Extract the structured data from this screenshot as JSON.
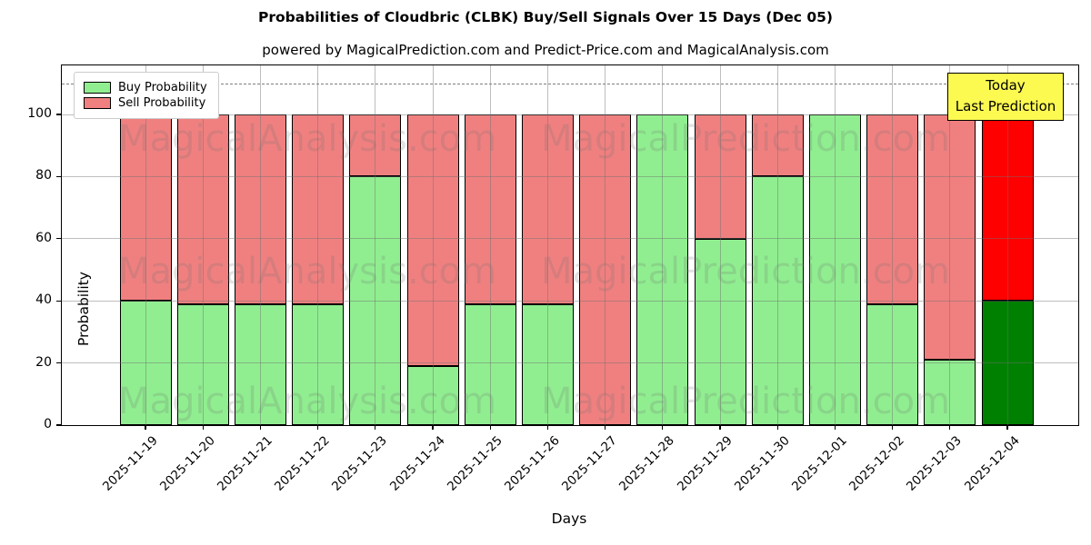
{
  "title": "Probabilities of Cloudbric (CLBK) Buy/Sell Signals Over 15 Days (Dec 05)",
  "subtitle": "powered by MagicalPrediction.com and Predict-Price.com and MagicalAnalysis.com",
  "legend": {
    "buy_label": "Buy Probability",
    "sell_label": "Sell Probability"
  },
  "annotation_box": {
    "line1": "Today",
    "line2": "Last Prediction"
  },
  "watermarks": {
    "left": "MagicalAnalysis.com",
    "right": "MagicalPrediction.com"
  },
  "colors": {
    "buy": "#90EE90",
    "sell": "#F08080",
    "buy_today": "#008000",
    "sell_today": "#FF0000",
    "annotation_bg": "#FCF951",
    "grid": "rgba(110,110,110,0.45)",
    "dashed_line": "#7f7f7f",
    "bar_edge": "#000000",
    "watermark": "rgba(110,110,110,0.20)"
  },
  "chart_data": {
    "type": "bar",
    "stacked": true,
    "title": "Probabilities of Cloudbric (CLBK) Buy/Sell Signals Over 15 Days (Dec 05)",
    "xlabel": "Days",
    "ylabel": "Probability",
    "yticks": [
      0,
      20,
      40,
      60,
      80,
      100
    ],
    "ylim": [
      0,
      115.8
    ],
    "dashed_line_y": 110,
    "grid": true,
    "legend_position": "upper left",
    "categories": [
      "2025-11-19",
      "2025-11-20",
      "2025-11-21",
      "2025-11-22",
      "2025-11-23",
      "2025-11-24",
      "2025-11-25",
      "2025-11-26",
      "2025-11-27",
      "2025-11-28",
      "2025-11-29",
      "2025-11-30",
      "2025-12-01",
      "2025-12-02",
      "2025-12-03",
      "2025-12-04"
    ],
    "series": [
      {
        "name": "Buy Probability",
        "values": [
          40,
          39,
          39,
          39,
          80,
          19,
          39,
          39,
          0,
          100,
          60,
          80,
          100,
          39,
          21,
          40
        ]
      },
      {
        "name": "Sell Probability",
        "values": [
          60,
          61,
          61,
          61,
          20,
          81,
          61,
          61,
          100,
          0,
          40,
          20,
          0,
          61,
          79,
          60
        ]
      }
    ],
    "today_index": 15,
    "today_label": "Today\nLast Prediction"
  }
}
